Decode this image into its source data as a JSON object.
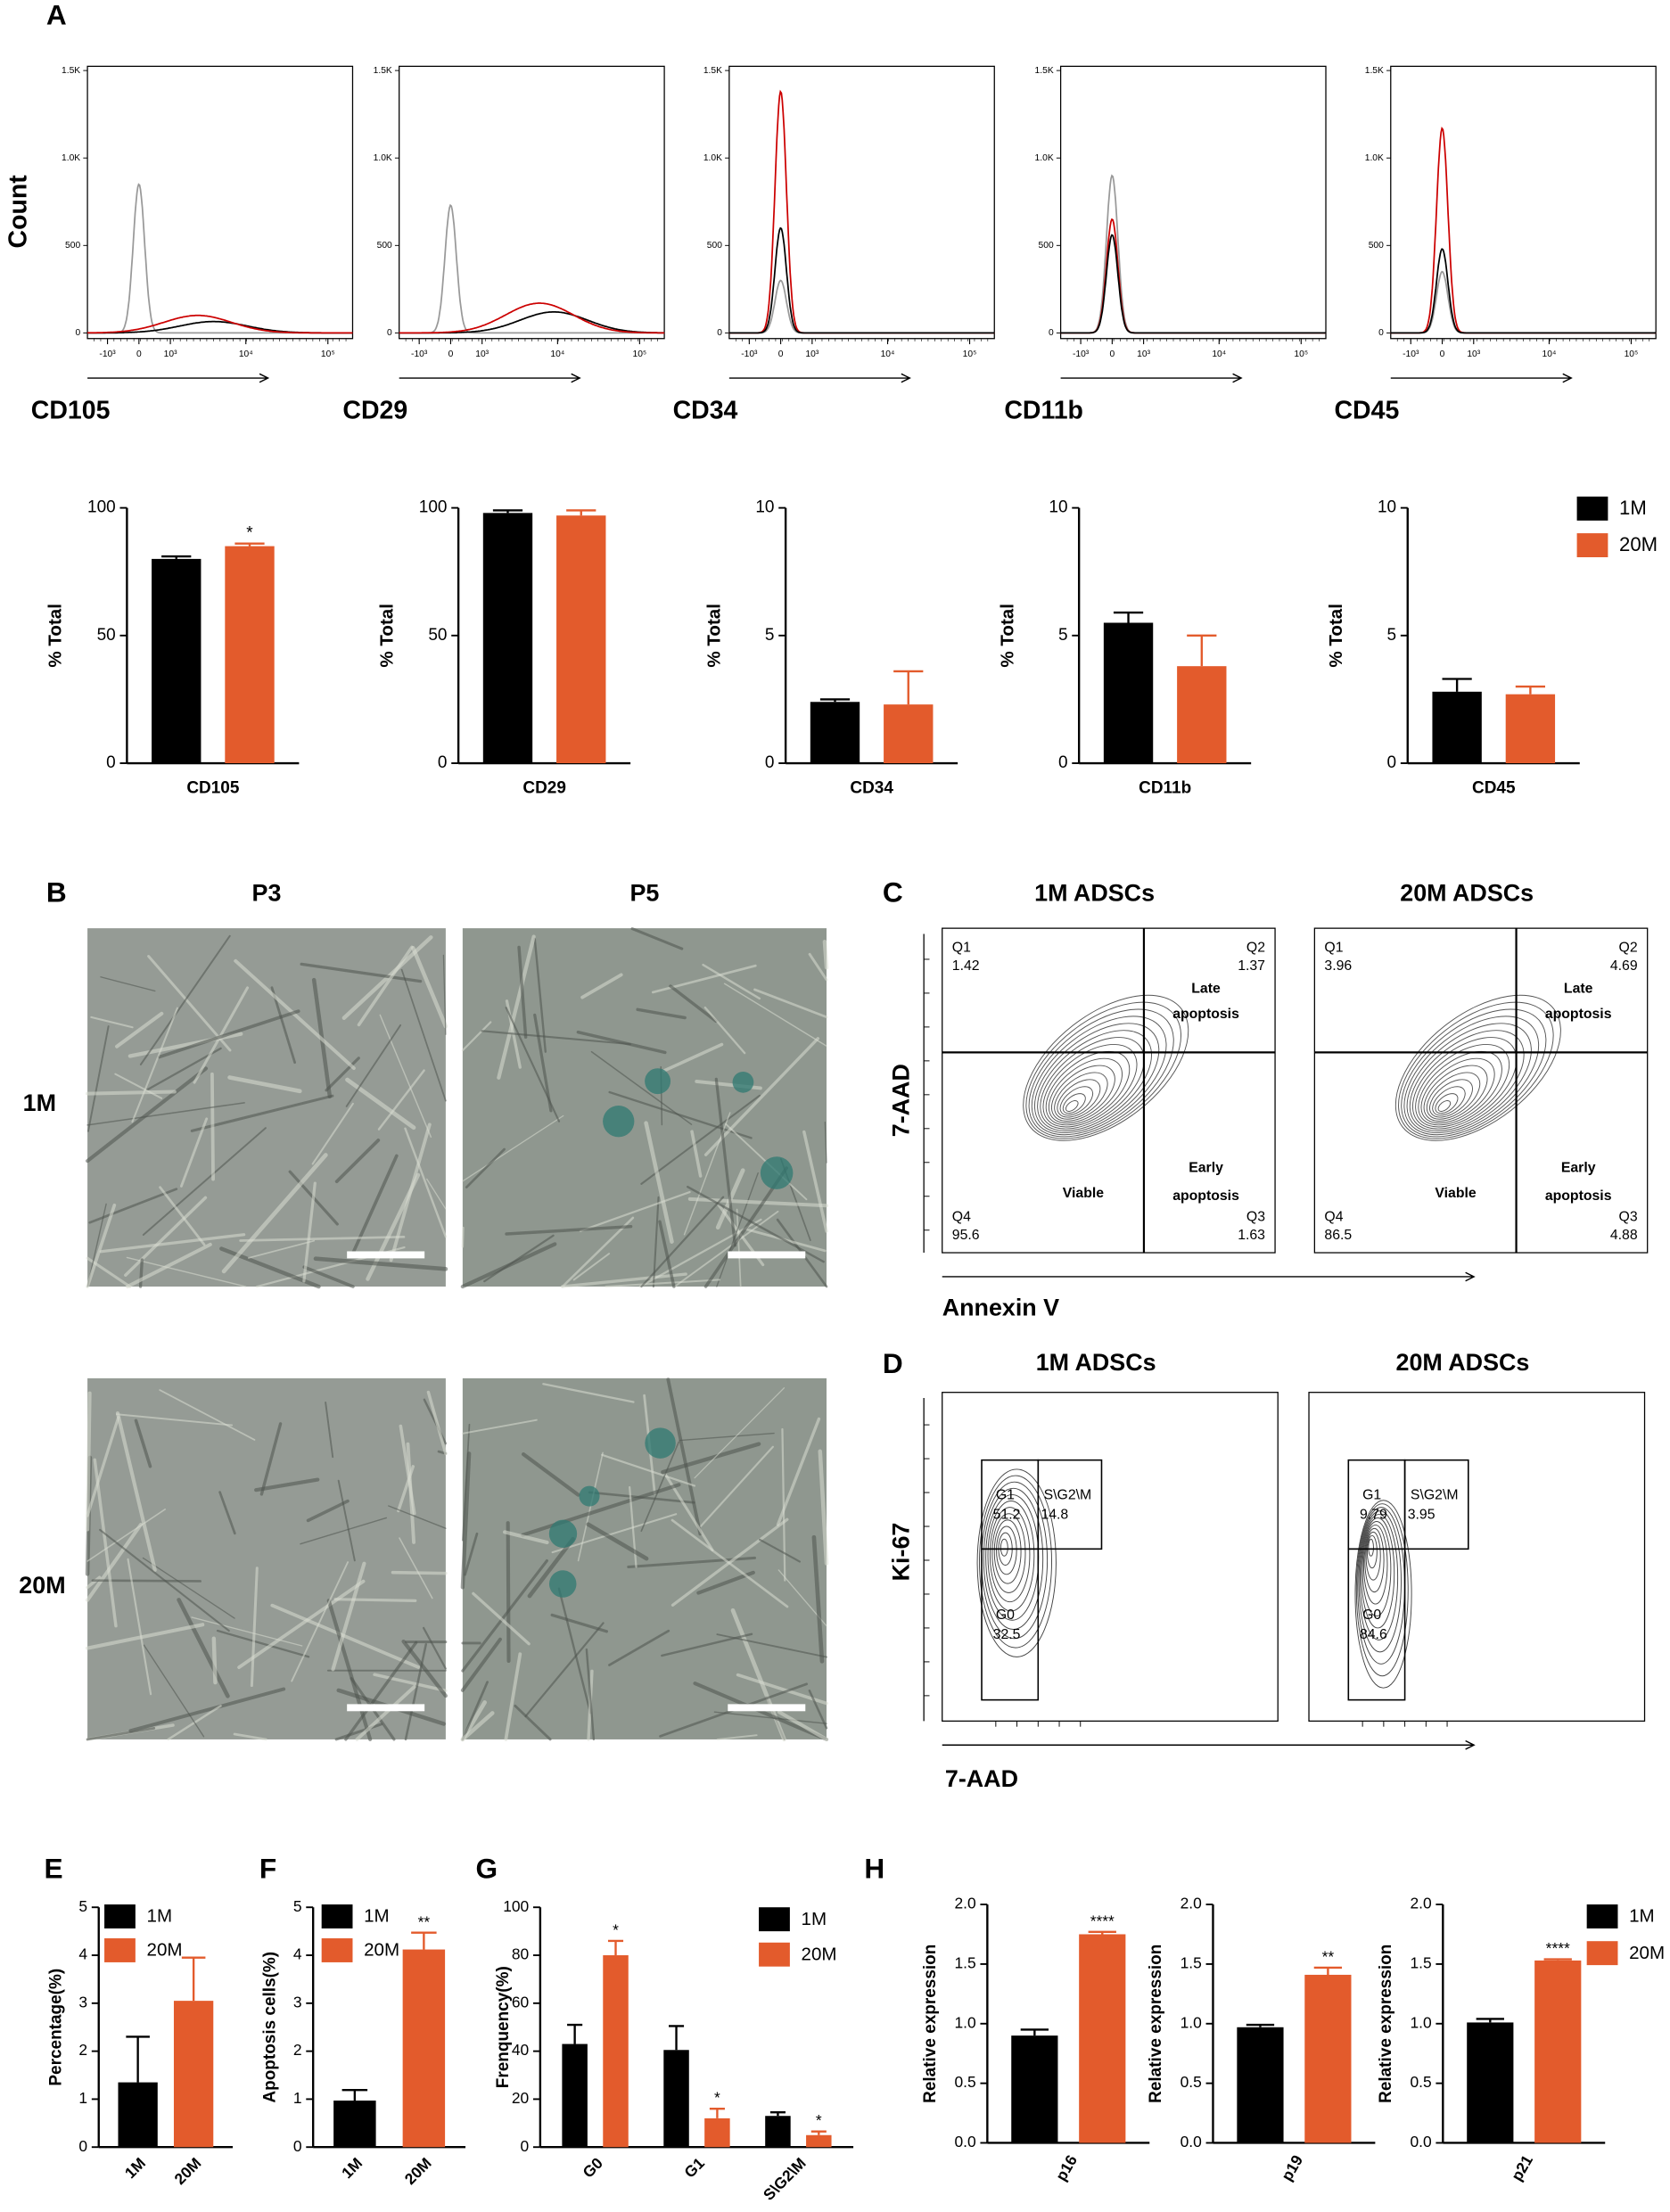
{
  "panel_labels": [
    "A",
    "B",
    "C",
    "D",
    "E",
    "F",
    "G",
    "H"
  ],
  "chart_data": [
    {
      "type": "density",
      "title": "CD105",
      "ylabel": "Count",
      "xlim": [
        -2000,
        200000
      ],
      "ylim": [
        0,
        1500
      ],
      "xticks": [
        {
          "value": -1000,
          "label": "-10³"
        },
        0,
        {
          "value": 1000,
          "label": "10³"
        },
        {
          "value": 10000,
          "label": "10⁴"
        },
        {
          "value": 100000,
          "label": "10⁵"
        }
      ],
      "yticks": [
        0,
        500,
        {
          "value": 1000,
          "label": "1.0K"
        },
        {
          "value": 1500,
          "label": "1.5K"
        }
      ],
      "series": [
        {
          "color": "#999999",
          "peak_x": 0,
          "peak_count": 850
        },
        {
          "color": "#000000",
          "peak_x": 4000,
          "peak_count": 65
        },
        {
          "color": "#cc0000",
          "peak_x": 2500,
          "peak_count": 100
        }
      ]
    },
    {
      "type": "density",
      "title": "CD29",
      "xlim": [
        -2000,
        200000
      ],
      "ylim": [
        0,
        1500
      ],
      "xticks": [
        {
          "value": -1000,
          "label": "-10³"
        },
        0,
        {
          "value": 1000,
          "label": "10³"
        },
        {
          "value": 10000,
          "label": "10⁴"
        },
        {
          "value": 100000,
          "label": "10⁵"
        }
      ],
      "yticks": [
        0,
        500,
        {
          "value": 1000,
          "label": "1.0K"
        },
        {
          "value": 1500,
          "label": "1.5K"
        }
      ],
      "series": [
        {
          "color": "#999999",
          "peak_x": 0,
          "peak_count": 730
        },
        {
          "color": "#000000",
          "peak_x": 9000,
          "peak_count": 120
        },
        {
          "color": "#cc0000",
          "peak_x": 6000,
          "peak_count": 170
        }
      ]
    },
    {
      "type": "density",
      "title": "CD34",
      "xlim": [
        -2000,
        200000
      ],
      "ylim": [
        0,
        1500
      ],
      "xticks": [
        {
          "value": -1000,
          "label": "-10³"
        },
        0,
        {
          "value": 1000,
          "label": "10³"
        },
        {
          "value": 10000,
          "label": "10⁴"
        },
        {
          "value": 100000,
          "label": "10⁵"
        }
      ],
      "yticks": [
        0,
        500,
        {
          "value": 1000,
          "label": "1.0K"
        },
        {
          "value": 1500,
          "label": "1.5K"
        }
      ],
      "series": [
        {
          "color": "#999999",
          "peak_x": 0,
          "peak_count": 300
        },
        {
          "color": "#cc0000",
          "peak_x": 0,
          "peak_count": 1380
        },
        {
          "color": "#000000",
          "peak_x": 0,
          "peak_count": 600
        }
      ]
    },
    {
      "type": "density",
      "title": "CD11b",
      "xlim": [
        -2000,
        200000
      ],
      "ylim": [
        0,
        1500
      ],
      "xticks": [
        {
          "value": -1000,
          "label": "-10³"
        },
        0,
        {
          "value": 1000,
          "label": "10³"
        },
        {
          "value": 10000,
          "label": "10⁴"
        },
        {
          "value": 100000,
          "label": "10⁵"
        }
      ],
      "yticks": [
        0,
        500,
        {
          "value": 1000,
          "label": "1.0K"
        },
        {
          "value": 1500,
          "label": "1.5K"
        }
      ],
      "series": [
        {
          "color": "#999999",
          "peak_x": 0,
          "peak_count": 900
        },
        {
          "color": "#cc0000",
          "peak_x": 0,
          "peak_count": 650
        },
        {
          "color": "#000000",
          "peak_x": 0,
          "peak_count": 560
        }
      ]
    },
    {
      "type": "density",
      "title": "CD45",
      "xlim": [
        -2000,
        200000
      ],
      "ylim": [
        0,
        1500
      ],
      "xticks": [
        {
          "value": -1000,
          "label": "-10³"
        },
        0,
        {
          "value": 1000,
          "label": "10³"
        },
        {
          "value": 10000,
          "label": "10⁴"
        },
        {
          "value": 100000,
          "label": "10⁵"
        }
      ],
      "yticks": [
        0,
        500,
        {
          "value": 1000,
          "label": "1.0K"
        },
        {
          "value": 1500,
          "label": "1.5K"
        }
      ],
      "series": [
        {
          "color": "#999999",
          "peak_x": 0,
          "peak_count": 350
        },
        {
          "color": "#cc0000",
          "peak_x": 0,
          "peak_count": 1170
        },
        {
          "color": "#000000",
          "peak_x": 0,
          "peak_count": 480
        }
      ]
    },
    {
      "type": "bar",
      "categories": [
        "CD105"
      ],
      "ylabel": "% Total",
      "ylim": [
        0,
        100
      ],
      "yticks": [
        0,
        50,
        100
      ],
      "series": [
        {
          "color": "#000000",
          "values": [
            80
          ],
          "errors": [
            1
          ]
        },
        {
          "color": "#e35b2c",
          "values": [
            85
          ],
          "errors": [
            1
          ],
          "annotations": [
            "*"
          ]
        }
      ]
    },
    {
      "type": "bar",
      "categories": [
        "CD29"
      ],
      "ylabel": "% Total",
      "ylim": [
        0,
        100
      ],
      "yticks": [
        0,
        50,
        100
      ],
      "series": [
        {
          "color": "#000000",
          "values": [
            98
          ],
          "errors": [
            1
          ]
        },
        {
          "color": "#e35b2c",
          "values": [
            97
          ],
          "errors": [
            2
          ]
        }
      ]
    },
    {
      "type": "bar",
      "categories": [
        "CD34"
      ],
      "ylabel": "% Total",
      "ylim": [
        0,
        10
      ],
      "yticks": [
        0,
        5,
        10
      ],
      "series": [
        {
          "color": "#000000",
          "values": [
            2.4
          ],
          "errors": [
            0.1
          ]
        },
        {
          "color": "#e35b2c",
          "values": [
            2.3
          ],
          "errors": [
            1.3
          ]
        }
      ]
    },
    {
      "type": "bar",
      "categories": [
        "CD11b"
      ],
      "ylabel": "% Total",
      "ylim": [
        0,
        10
      ],
      "yticks": [
        0,
        5,
        10
      ],
      "series": [
        {
          "color": "#000000",
          "values": [
            5.5
          ],
          "errors": [
            0.4
          ]
        },
        {
          "color": "#e35b2c",
          "values": [
            3.8
          ],
          "errors": [
            1.2
          ]
        }
      ]
    },
    {
      "type": "bar",
      "categories": [
        "CD45"
      ],
      "ylabel": "% Total",
      "ylim": [
        0,
        10
      ],
      "yticks": [
        0,
        5,
        10
      ],
      "legend": true,
      "series": [
        {
          "name": "1M",
          "color": "#000000",
          "values": [
            2.8
          ],
          "errors": [
            0.5
          ]
        },
        {
          "name": "20M",
          "color": "#e35b2c",
          "values": [
            2.7
          ],
          "errors": [
            0.3
          ]
        }
      ]
    },
    {
      "type": "bar",
      "categories": [
        "1M",
        "20M"
      ],
      "ylabel": "Percentage(%)",
      "ylim": [
        0,
        5
      ],
      "yticks": [
        0,
        1,
        2,
        3,
        4,
        5
      ],
      "legend": true,
      "values": [
        1.35,
        3.05
      ],
      "errors": [
        0.95,
        0.9
      ],
      "colors": [
        "#000000",
        "#e35b2c"
      ]
    },
    {
      "type": "bar",
      "categories": [
        "1M",
        "20M"
      ],
      "ylabel": "Apoptosis cells(%)",
      "ylim": [
        0,
        5
      ],
      "yticks": [
        0,
        1,
        2,
        3,
        4,
        5
      ],
      "legend": true,
      "values": [
        0.97,
        4.12
      ],
      "errors": [
        0.22,
        0.35
      ],
      "colors": [
        "#000000",
        "#e35b2c"
      ],
      "annotations": [
        null,
        "**"
      ]
    },
    {
      "type": "bar",
      "categories": [
        "G0",
        "G1",
        "S\\G2\\M"
      ],
      "ylabel": "Frenquency(%)",
      "ylim": [
        0,
        100
      ],
      "yticks": [
        0,
        20,
        40,
        60,
        80,
        100
      ],
      "legend": true,
      "series": [
        {
          "name": "1M",
          "color": "#000000",
          "values": [
            43,
            40.5,
            13
          ],
          "errors": [
            8,
            10,
            1.5
          ]
        },
        {
          "name": "20M",
          "color": "#e35b2c",
          "values": [
            80,
            12,
            5
          ],
          "errors": [
            6,
            4,
            1.5
          ],
          "annotations": [
            "*",
            "*",
            "*"
          ]
        }
      ]
    },
    {
      "type": "bar",
      "categories": [
        "p16"
      ],
      "ylabel": "Relative expression",
      "ylim": [
        0,
        2
      ],
      "yticks": [
        {
          "value": 0,
          "label": "0.0"
        },
        0.5,
        {
          "value": 1,
          "label": "1.0"
        },
        1.5,
        {
          "value": 2,
          "label": "2.0"
        }
      ],
      "series": [
        {
          "color": "#000000",
          "values": [
            0.9
          ],
          "errors": [
            0.05
          ]
        },
        {
          "color": "#e35b2c",
          "values": [
            1.75
          ],
          "errors": [
            0.02
          ],
          "annotations": [
            "****"
          ]
        }
      ]
    },
    {
      "type": "bar",
      "categories": [
        "p19"
      ],
      "ylabel": "Relative expression",
      "ylim": [
        0,
        2
      ],
      "yticks": [
        {
          "value": 0,
          "label": "0.0"
        },
        0.5,
        {
          "value": 1,
          "label": "1.0"
        },
        1.5,
        {
          "value": 2,
          "label": "2.0"
        }
      ],
      "series": [
        {
          "color": "#000000",
          "values": [
            0.97
          ],
          "errors": [
            0.02
          ]
        },
        {
          "color": "#e35b2c",
          "values": [
            1.41
          ],
          "errors": [
            0.06
          ],
          "annotations": [
            "**"
          ]
        }
      ]
    },
    {
      "type": "bar",
      "categories": [
        "p21"
      ],
      "ylabel": "Relative expression",
      "ylim": [
        0,
        2
      ],
      "legend": true,
      "yticks": [
        {
          "value": 0,
          "label": "0.0"
        },
        0.5,
        {
          "value": 1,
          "label": "1.0"
        },
        1.5,
        {
          "value": 2,
          "label": "2.0"
        }
      ],
      "series": [
        {
          "name": "1M",
          "color": "#000000",
          "values": [
            1.01
          ],
          "errors": [
            0.03
          ]
        },
        {
          "name": "20M",
          "color": "#e35b2c",
          "values": [
            1.53
          ],
          "errors": [
            0.01
          ],
          "annotations": [
            "****"
          ]
        }
      ]
    }
  ],
  "micrographs": {
    "columns": [
      "P3",
      "P5"
    ],
    "rows": [
      "1M",
      "20M"
    ]
  },
  "apoptosis": {
    "y_label": "7-AAD",
    "x_label": "Annexin V",
    "late": [
      "Late",
      "apoptosis"
    ],
    "early": [
      "Early",
      "apoptosis"
    ],
    "viable": "Viable",
    "plots": [
      {
        "title": "1M ADSCs",
        "quadrants": [
          {
            "name": "Q1",
            "value": 1.42
          },
          {
            "name": "Q2",
            "value": 1.37
          },
          {
            "name": "Q3",
            "value": 1.63
          },
          {
            "name": "Q4",
            "value": 95.6
          }
        ]
      },
      {
        "title": "20M ADSCs",
        "quadrants": [
          {
            "name": "Q1",
            "value": 3.96
          },
          {
            "name": "Q2",
            "value": 4.69
          },
          {
            "name": "Q3",
            "value": 4.88
          },
          {
            "name": "Q4",
            "value": 86.5
          }
        ]
      }
    ]
  },
  "cell_cycle": {
    "y_label": "Ki-67",
    "x_label": "7-AAD",
    "plots": [
      {
        "title": "1M ADSCs",
        "gates": [
          {
            "name": "G1",
            "value": 51.2
          },
          {
            "name": "S\\G2\\M",
            "value": 14.8
          },
          {
            "name": "G0",
            "value": 32.5
          }
        ]
      },
      {
        "title": "20M ADSCs",
        "gates": [
          {
            "name": "G1",
            "value": 9.79
          },
          {
            "name": "S\\G2\\M",
            "value": 3.95
          },
          {
            "name": "G0",
            "value": 84.6
          }
        ]
      }
    ]
  }
}
